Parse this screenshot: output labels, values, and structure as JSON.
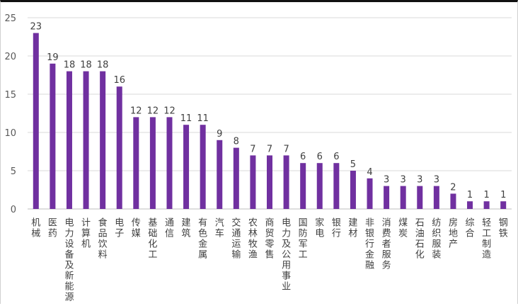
{
  "chart_data": {
    "type": "bar",
    "title": "",
    "xlabel": "",
    "ylabel": "",
    "ylim": [
      0,
      25
    ],
    "yticks": [
      0,
      5,
      10,
      15,
      20,
      25
    ],
    "grid": "horizontal",
    "legend": "none",
    "bar_color": "#7030A0",
    "categories": [
      "机械",
      "医药",
      "电力设备及新能源",
      "计算机",
      "食品饮料",
      "电子",
      "传媒",
      "基础化工",
      "通信",
      "建筑",
      "有色金属",
      "汽车",
      "交通运输",
      "农林牧渔",
      "商贸零售",
      "电力及公用事业",
      "国防军工",
      "家电",
      "银行",
      "建材",
      "非银行金融",
      "消费者服务",
      "煤炭",
      "石油石化",
      "纺织服装",
      "房地产",
      "综合",
      "轻工制造",
      "钢铁"
    ],
    "values": [
      23,
      19,
      18,
      18,
      18,
      16,
      12,
      12,
      12,
      11,
      11,
      9,
      8,
      7,
      7,
      7,
      6,
      6,
      6,
      5,
      4,
      3,
      3,
      3,
      3,
      2,
      1,
      1,
      1
    ]
  }
}
